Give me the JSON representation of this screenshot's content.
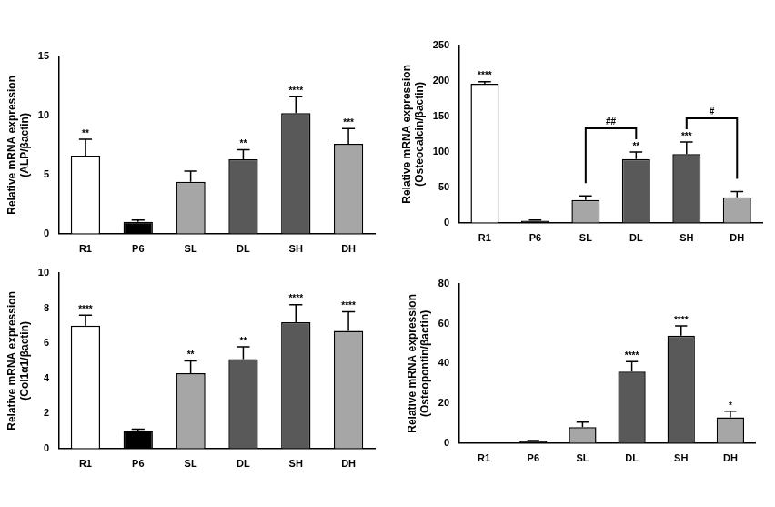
{
  "chart_data": [
    {
      "type": "bar",
      "y_label": [
        "Relative mRNA expression",
        "(ALP/βactin)"
      ],
      "categories": [
        "R1",
        "P6",
        "SL",
        "DL",
        "SH",
        "DH"
      ],
      "values": [
        6.6,
        1.0,
        4.4,
        6.3,
        10.2,
        7.6
      ],
      "errors": [
        1.4,
        0.15,
        0.9,
        0.8,
        1.4,
        1.3
      ],
      "annotations": [
        "**",
        null,
        null,
        "**",
        "****",
        "***"
      ],
      "colors": [
        "#ffffff",
        "#000000",
        "#a6a6a6",
        "#595959",
        "#595959",
        "#a6a6a6"
      ],
      "ylim": [
        0,
        15
      ],
      "yticks": [
        0,
        5,
        10,
        15
      ],
      "grid": false
    },
    {
      "type": "bar",
      "y_label": [
        "Relative mRNA expression",
        "(Osteocalcin/βactin)"
      ],
      "categories": [
        "R1",
        "P6",
        "SL",
        "DL",
        "SH",
        "DH"
      ],
      "values": [
        196,
        3,
        32,
        90,
        97,
        36
      ],
      "errors": [
        3,
        1,
        6,
        10,
        17,
        8
      ],
      "annotations": [
        "****",
        null,
        null,
        "**",
        "***",
        null
      ],
      "comparisons": [
        {
          "from": "SL",
          "to": "DL",
          "text": "##"
        },
        {
          "from": "SH",
          "to": "DH",
          "text": "#"
        }
      ],
      "colors": [
        "#ffffff",
        "#000000",
        "#a6a6a6",
        "#595959",
        "#595959",
        "#a6a6a6"
      ],
      "ylim": [
        0,
        250
      ],
      "yticks": [
        0,
        50,
        100,
        150,
        200,
        250
      ],
      "grid": false
    },
    {
      "type": "bar",
      "y_label": [
        "Relative mRNA expression",
        "(Col1α1/βactin)"
      ],
      "categories": [
        "R1",
        "P6",
        "SL",
        "DL",
        "SH",
        "DH"
      ],
      "values": [
        7.0,
        1.0,
        4.3,
        5.1,
        7.2,
        6.7
      ],
      "errors": [
        0.6,
        0.1,
        0.7,
        0.7,
        1.0,
        1.1
      ],
      "annotations": [
        "****",
        null,
        "**",
        "**",
        "****",
        "****"
      ],
      "colors": [
        "#ffffff",
        "#000000",
        "#a6a6a6",
        "#595959",
        "#595959",
        "#a6a6a6"
      ],
      "ylim": [
        0,
        10
      ],
      "yticks": [
        0,
        2,
        4,
        6,
        8,
        10
      ],
      "grid": false
    },
    {
      "type": "bar",
      "y_label": [
        "Relative mRNA expression",
        "(Osteopontin/βactin)"
      ],
      "categories": [
        "R1",
        "P6",
        "SL",
        "DL",
        "SH",
        "DH"
      ],
      "values": [
        0,
        1,
        8,
        36,
        54,
        13
      ],
      "errors": [
        0,
        0.3,
        2.5,
        5,
        5,
        3
      ],
      "annotations": [
        null,
        null,
        null,
        "****",
        "****",
        "*"
      ],
      "colors": [
        "#ffffff",
        "#000000",
        "#a6a6a6",
        "#595959",
        "#595959",
        "#a6a6a6"
      ],
      "ylim": [
        0,
        80
      ],
      "yticks": [
        0,
        20,
        40,
        60,
        80
      ],
      "grid": false
    }
  ]
}
